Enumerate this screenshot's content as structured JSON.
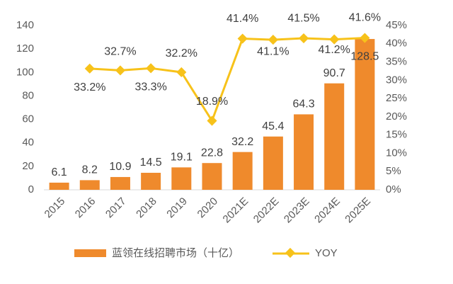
{
  "chart_data": {
    "type": "bar",
    "categories": [
      "2015",
      "2016",
      "2017",
      "2018",
      "2019",
      "2020",
      "2021E",
      "2022E",
      "2023E",
      "2024E",
      "2025E"
    ],
    "series": [
      {
        "name": "蓝领在线招聘市场（十亿）",
        "type": "bar",
        "color": "#ef8a2c",
        "values": [
          6.1,
          8.2,
          10.9,
          14.5,
          19.1,
          22.8,
          32.2,
          45.4,
          64.3,
          90.7,
          128.5
        ]
      },
      {
        "name": "YOY",
        "type": "line",
        "axis": "y2",
        "color": "#f7c21a",
        "values": [
          null,
          33.2,
          32.7,
          33.3,
          32.2,
          18.9,
          41.4,
          41.1,
          41.5,
          41.2,
          41.6
        ],
        "value_labels": [
          null,
          "33.2%",
          "32.7%",
          "33.3%",
          "32.2%",
          "18.9%",
          "41.4%",
          "41.1%",
          "41.5%",
          "41.2%",
          "41.6%"
        ]
      }
    ],
    "ylim": [
      0,
      140
    ],
    "yticks": [
      0,
      20,
      40,
      60,
      80,
      100,
      120,
      140
    ],
    "y2lim": [
      0,
      45
    ],
    "y2ticks": [
      {
        "value": 0,
        "label": "0%"
      },
      {
        "value": 5,
        "label": "5%"
      },
      {
        "value": 10,
        "label": "10%"
      },
      {
        "value": 15,
        "label": "15%"
      },
      {
        "value": 20,
        "label": "20%"
      },
      {
        "value": 25,
        "label": "25%"
      },
      {
        "value": 30,
        "label": "30%"
      },
      {
        "value": 35,
        "label": "35%"
      },
      {
        "value": 40,
        "label": "40%"
      },
      {
        "value": 45,
        "label": "45%"
      }
    ],
    "grid": false
  }
}
